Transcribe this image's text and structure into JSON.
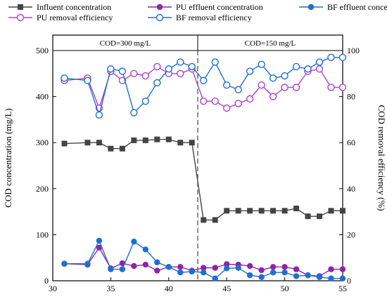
{
  "chart_data": {
    "type": "line",
    "x_range": [
      30,
      55
    ],
    "x_ticks": [
      30,
      35,
      40,
      45,
      50,
      55
    ],
    "y_left_range": [
      0,
      500
    ],
    "y_left_ticks": [
      0,
      100,
      200,
      300,
      400,
      500
    ],
    "y_right_range": [
      0,
      100
    ],
    "y_right_ticks": [
      0,
      20,
      40,
      60,
      80,
      100
    ],
    "ylabel_left": "COD concentration (mg/L)",
    "ylabel_right": "COD removal  efficiency (%)",
    "xlabel": "",
    "grid": false,
    "phase_divider_x": 42.5,
    "phase_labels": [
      "COD=300 mg/L",
      "COD=150 mg/L"
    ],
    "legend_position": "top",
    "series": [
      {
        "name": "Influent concentration",
        "axis": "left",
        "color": "#444444",
        "marker": "square",
        "x": [
          31,
          33,
          34,
          35,
          36,
          37,
          38,
          39,
          40,
          41,
          42,
          43,
          44,
          45,
          46,
          47,
          48,
          49,
          50,
          51,
          52,
          53,
          54,
          55
        ],
        "y": [
          298,
          300,
          300,
          287,
          287,
          305,
          305,
          307,
          307,
          300,
          300,
          132,
          132,
          152,
          152,
          152,
          152,
          152,
          152,
          157,
          140,
          140,
          152,
          152
        ]
      },
      {
        "name": "PU effluent concentration",
        "axis": "left",
        "color": "#8e24aa",
        "marker": "circle-filled",
        "x": [
          31,
          33,
          34,
          35,
          36,
          37,
          38,
          39,
          40,
          41,
          42,
          43,
          44,
          45,
          46,
          47,
          48,
          49,
          50,
          51,
          52,
          53,
          54,
          55
        ],
        "y": [
          37,
          35,
          72,
          27,
          38,
          32,
          35,
          22,
          30,
          30,
          22,
          28,
          28,
          36,
          35,
          32,
          23,
          30,
          30,
          25,
          12,
          10,
          25,
          25
        ]
      },
      {
        "name": "PU removal efficiency",
        "axis": "right",
        "color": "#b040c8",
        "marker": "circle-open",
        "x": [
          31,
          33,
          34,
          35,
          36,
          37,
          38,
          39,
          40,
          41,
          42,
          43,
          44,
          45,
          46,
          47,
          48,
          49,
          50,
          51,
          52,
          53,
          54,
          55
        ],
        "y": [
          87,
          88,
          75,
          91,
          87,
          90,
          89,
          93,
          90,
          90,
          92,
          78,
          78,
          75,
          77,
          79,
          85,
          80,
          84,
          84,
          91,
          92,
          84,
          84
        ]
      },
      {
        "name": "BF effluent concentration",
        "axis": "left",
        "color": "#1f6fd1",
        "marker": "circle-filled",
        "x": [
          31,
          33,
          34,
          35,
          36,
          37,
          38,
          39,
          40,
          41,
          42,
          43,
          44,
          45,
          46,
          47,
          48,
          49,
          50,
          51,
          52,
          53,
          54,
          55
        ],
        "y": [
          37,
          37,
          87,
          25,
          25,
          85,
          68,
          40,
          30,
          18,
          20,
          18,
          5,
          27,
          28,
          12,
          8,
          18,
          18,
          10,
          12,
          8,
          5,
          5
        ]
      },
      {
        "name": "BF removal efficiency",
        "axis": "right",
        "color": "#1f6fd1",
        "marker": "circle-open",
        "x": [
          31,
          33,
          34,
          35,
          36,
          37,
          38,
          39,
          40,
          41,
          42,
          43,
          44,
          45,
          46,
          47,
          48,
          49,
          50,
          51,
          52,
          53,
          54,
          55
        ],
        "y": [
          88,
          87,
          72,
          92,
          91,
          73,
          78,
          86,
          92,
          95,
          93,
          87,
          95,
          85,
          83,
          91,
          94,
          88,
          89,
          93,
          92,
          95,
          97,
          97
        ]
      }
    ]
  }
}
